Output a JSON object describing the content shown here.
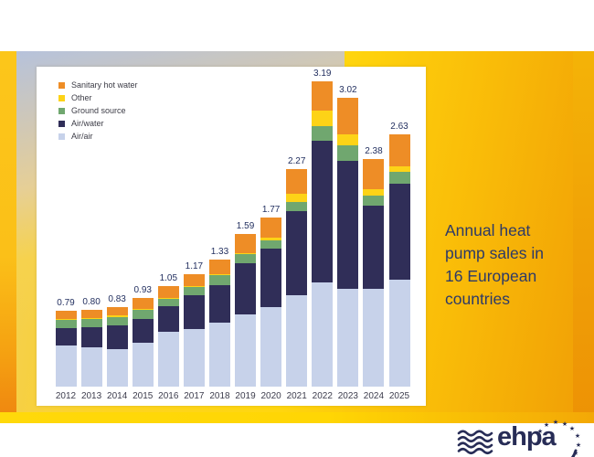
{
  "slide": {
    "title": "Annual heat pump sales in 16 European countries",
    "title_lines": [
      "Annual heat",
      "pump sales in",
      "16 European",
      "countries"
    ],
    "logo": {
      "wordmark": "ehpa",
      "wave_icon": "wave-lines",
      "star_ring": "eu-stars-crescent"
    }
  },
  "colors": {
    "air_air": "#c7d2ea",
    "air_water": "#302e58",
    "ground_source": "#70a76f",
    "other": "#fdd317",
    "sanitary_hot_water": "#ee8d26",
    "value_label": "#233060",
    "title_text": "#2d3a68",
    "logo_navy": "#272c56"
  },
  "chart_data": {
    "type": "bar",
    "stacked": true,
    "title": "Annual heat pump sales in 16 European countries",
    "xlabel": "",
    "ylabel": "",
    "ylim": [
      0,
      3.4
    ],
    "grid": false,
    "legend_position": "top-left",
    "categories": [
      "2012",
      "2013",
      "2014",
      "2015",
      "2016",
      "2017",
      "2018",
      "2019",
      "2020",
      "2021",
      "2022",
      "2023",
      "2024",
      "2025"
    ],
    "series": [
      {
        "name": "Air/air",
        "color": "#c7d2ea",
        "values": [
          0.43,
          0.41,
          0.39,
          0.46,
          0.57,
          0.6,
          0.67,
          0.75,
          0.83,
          0.95,
          1.09,
          1.02,
          1.02,
          1.12
        ]
      },
      {
        "name": "Air/water",
        "color": "#302e58",
        "values": [
          0.18,
          0.21,
          0.25,
          0.25,
          0.27,
          0.35,
          0.39,
          0.54,
          0.61,
          0.88,
          1.48,
          1.34,
          0.87,
          1.0
        ]
      },
      {
        "name": "Ground source",
        "color": "#70a76f",
        "values": [
          0.09,
          0.09,
          0.09,
          0.09,
          0.08,
          0.09,
          0.1,
          0.09,
          0.09,
          0.1,
          0.15,
          0.16,
          0.1,
          0.12
        ]
      },
      {
        "name": "Other",
        "color": "#fdd317",
        "values": [
          0.01,
          0.01,
          0.01,
          0.01,
          0.01,
          0.01,
          0.01,
          0.01,
          0.03,
          0.08,
          0.16,
          0.11,
          0.07,
          0.06
        ]
      },
      {
        "name": "Sanitary hot water",
        "color": "#ee8d26",
        "values": [
          0.08,
          0.08,
          0.09,
          0.12,
          0.12,
          0.12,
          0.16,
          0.2,
          0.21,
          0.26,
          0.31,
          0.39,
          0.32,
          0.33
        ]
      }
    ],
    "totals_labels": [
      "0.79",
      "0.80",
      "0.83",
      "0.93",
      "1.05",
      "1.17",
      "1.33",
      "1.59",
      "1.77",
      "2.27",
      "3.19",
      "3.02",
      "2.38",
      "2.63"
    ],
    "legend": [
      {
        "label": "Sanitary hot water",
        "color": "#ee8d26"
      },
      {
        "label": "Other",
        "color": "#fdd317"
      },
      {
        "label": "Ground source",
        "color": "#70a76f"
      },
      {
        "label": "Air/water",
        "color": "#302e58"
      },
      {
        "label": "Air/air",
        "color": "#c7d2ea"
      }
    ]
  }
}
